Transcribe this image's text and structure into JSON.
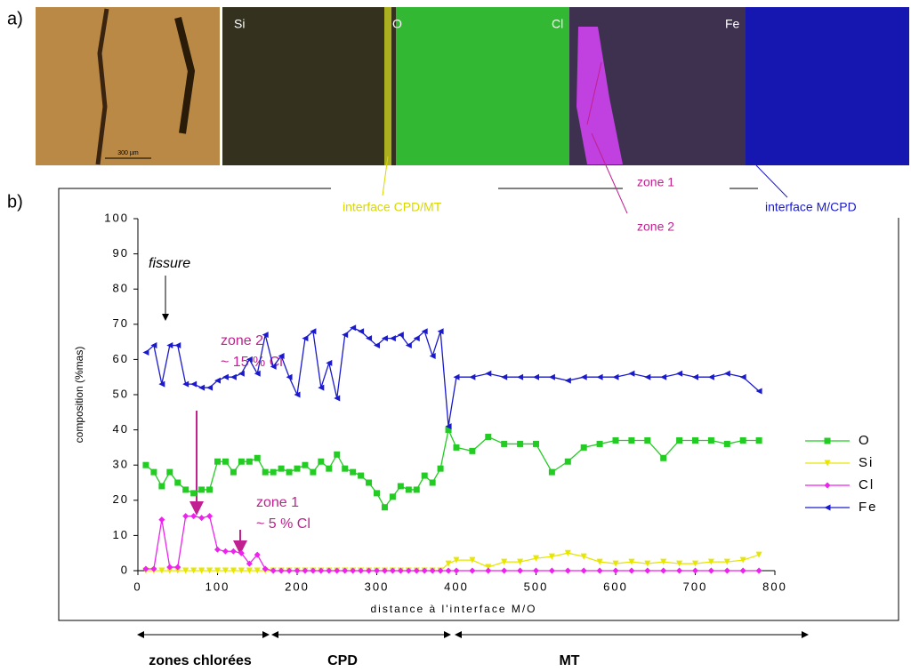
{
  "figure": {
    "panel_a": "a)",
    "panel_b": "b)",
    "map_labels": [
      "Si",
      "O",
      "Cl",
      "Fe"
    ],
    "scale_bar": "300 µm",
    "callouts": {
      "interface_cpd_mt": "interface CPD/MT",
      "zone1": "zone 1",
      "zone2": "zone 2",
      "interface_m_cpd": "interface M/CPD"
    },
    "regions": [
      "zones chlorées",
      "CPD",
      "MT"
    ]
  },
  "chart_data": {
    "type": "line",
    "x_label": "distance à l'interface M/O",
    "y_label": "composition (%mas)",
    "annotations": {
      "fissure": "fissure",
      "zone2": "zone 2",
      "zone2_cl": "~ 15 % Cl",
      "zone1": "zone 1",
      "zone1_cl": "~ 5 % Cl"
    },
    "x": [
      10,
      20,
      30,
      40,
      50,
      60,
      70,
      80,
      90,
      100,
      110,
      120,
      130,
      140,
      150,
      160,
      170,
      180,
      190,
      200,
      210,
      220,
      230,
      240,
      250,
      260,
      270,
      280,
      290,
      300,
      310,
      320,
      330,
      340,
      350,
      360,
      370,
      380,
      390,
      400,
      420,
      440,
      460,
      480,
      500,
      520,
      540,
      560,
      580,
      600,
      620,
      640,
      660,
      680,
      700,
      720,
      740,
      760,
      780
    ],
    "series": [
      {
        "name": "O",
        "color": "#22cc22",
        "marker": "square",
        "values": [
          30,
          28,
          24,
          28,
          25,
          23,
          22,
          23,
          23,
          31,
          31,
          28,
          31,
          31,
          32,
          28,
          28,
          29,
          28,
          29,
          30,
          28,
          31,
          29,
          33,
          29,
          28,
          27,
          25,
          22,
          18,
          21,
          24,
          23,
          23,
          27,
          25,
          29,
          40,
          35,
          34,
          38,
          36,
          36,
          36,
          28,
          31,
          35,
          36,
          37,
          37,
          37,
          32,
          37,
          37,
          37,
          36,
          37,
          37
        ]
      },
      {
        "name": "Si",
        "color": "#e6e600",
        "marker": "triangle-down",
        "values": [
          0,
          0,
          0,
          0,
          0,
          0,
          0,
          0,
          0,
          0,
          0,
          0,
          0,
          0,
          0,
          0,
          0,
          0,
          0,
          0,
          0,
          0,
          0,
          0,
          0,
          0,
          0,
          0,
          0,
          0,
          0,
          0,
          0,
          0,
          0,
          0,
          0,
          0,
          2,
          3,
          3,
          1,
          2.5,
          2.5,
          3.5,
          4,
          5,
          4,
          2.5,
          2,
          2.5,
          2,
          2.5,
          2,
          2,
          2.5,
          2.5,
          3,
          4.5
        ]
      },
      {
        "name": "Cl",
        "color": "#ee22ee",
        "marker": "diamond",
        "values": [
          0.5,
          0.5,
          14.5,
          1,
          1,
          15.5,
          15.5,
          15,
          15.5,
          6,
          5.5,
          5.5,
          5,
          2,
          4.5,
          0.5,
          0,
          0,
          0,
          0,
          0,
          0,
          0,
          0,
          0,
          0,
          0,
          0,
          0,
          0,
          0,
          0,
          0,
          0,
          0,
          0,
          0,
          0,
          0,
          0,
          0,
          0,
          0,
          0,
          0,
          0,
          0,
          0,
          0,
          0,
          0,
          0,
          0,
          0,
          0,
          0,
          0,
          0,
          0
        ]
      },
      {
        "name": "Fe",
        "color": "#1a1acc",
        "marker": "triangle-left",
        "values": [
          62,
          64,
          53,
          64,
          64,
          53,
          53,
          52,
          52,
          54,
          55,
          55,
          56,
          60,
          56,
          67,
          58,
          61,
          55,
          50,
          66,
          68,
          52,
          59,
          49,
          67,
          69,
          68,
          66,
          64,
          66,
          66,
          67,
          64,
          66,
          68,
          61,
          68,
          41,
          55,
          55,
          56,
          55,
          55,
          55,
          55,
          54,
          55,
          55,
          55,
          56,
          55,
          55,
          56,
          55,
          55,
          56,
          55,
          51
        ]
      }
    ],
    "xlim": [
      0,
      800
    ],
    "xticks": [
      0,
      100,
      200,
      300,
      400,
      500,
      600,
      700,
      800
    ],
    "ylim": [
      0,
      100
    ],
    "yticks": [
      0,
      10,
      20,
      30,
      40,
      50,
      60,
      70,
      80,
      90,
      100
    ],
    "grid": false,
    "legend": "right"
  }
}
